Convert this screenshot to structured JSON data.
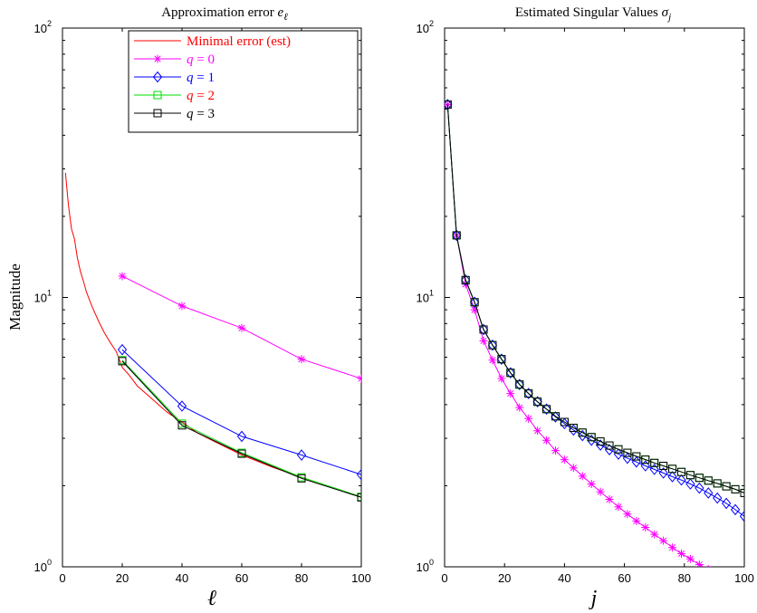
{
  "figure": {
    "ylabel": "Magnitude"
  },
  "chart_data": [
    {
      "type": "line",
      "title": "Approximation error e_ℓ",
      "title_main": "Approximation error ",
      "title_var": "e",
      "title_sub": "ℓ",
      "xlabel": "ℓ",
      "ylabel": "Magnitude",
      "xlim": [
        0,
        100
      ],
      "ylim": [
        1,
        100
      ],
      "yscale": "log",
      "grid": false,
      "legend_position": "top-right",
      "xticks": [
        "0",
        "20",
        "40",
        "60",
        "80",
        "100"
      ],
      "xtick_values": [
        0,
        20,
        40,
        60,
        80,
        100
      ],
      "yticks": [
        {
          "base": "10",
          "exp": "0",
          "value": 1
        },
        {
          "base": "10",
          "exp": "1",
          "value": 10
        },
        {
          "base": "10",
          "exp": "2",
          "value": 100
        }
      ],
      "series": [
        {
          "name": "Minimal error (est)",
          "color": "#ff0000",
          "marker": "none",
          "x": [
            1,
            2,
            3,
            4,
            5,
            6,
            7,
            8,
            9,
            10,
            12,
            14,
            16,
            18,
            20,
            22,
            25,
            30,
            35,
            40,
            45,
            50,
            60,
            70,
            80,
            90,
            100
          ],
          "y": [
            29,
            22,
            18,
            16.5,
            14,
            12.5,
            11.5,
            10.5,
            9.8,
            9.2,
            8.2,
            7.4,
            6.8,
            6.3,
            5.5,
            5.2,
            4.7,
            4.2,
            3.75,
            3.45,
            3.15,
            2.95,
            2.6,
            2.35,
            2.15,
            1.97,
            1.82
          ]
        },
        {
          "name": "q = 0",
          "q_value": "0",
          "color": "#ff00ff",
          "marker": "star",
          "x": [
            20,
            40,
            60,
            80,
            100
          ],
          "y": [
            12,
            9.3,
            7.7,
            5.9,
            5.0
          ]
        },
        {
          "name": "q = 1",
          "q_value": "1",
          "color": "#0000ff",
          "marker": "diamond",
          "x": [
            20,
            40,
            60,
            80,
            100
          ],
          "y": [
            6.4,
            3.95,
            3.05,
            2.6,
            2.2
          ]
        },
        {
          "name": "q = 2",
          "q_value": "2",
          "color": "#00dd00",
          "marker": "square",
          "x": [
            20,
            40,
            60,
            80,
            100
          ],
          "y": [
            5.85,
            3.4,
            2.65,
            2.15,
            1.82
          ]
        },
        {
          "name": "q = 3",
          "q_value": "3",
          "color": "#000000",
          "marker": "square",
          "x": [
            20,
            40,
            60,
            80,
            100
          ],
          "y": [
            5.8,
            3.35,
            2.63,
            2.13,
            1.81
          ]
        }
      ]
    },
    {
      "type": "line",
      "title": "Estimated Singular Values σ_j",
      "title_main": "Estimated Singular Values ",
      "title_var": "σ",
      "title_sub": "j",
      "xlabel": "j",
      "xlim": [
        0,
        100
      ],
      "ylim": [
        1,
        100
      ],
      "yscale": "log",
      "grid": false,
      "xticks": [
        "0",
        "20",
        "40",
        "60",
        "80",
        "100"
      ],
      "xtick_values": [
        0,
        20,
        40,
        60,
        80,
        100
      ],
      "yticks": [
        {
          "base": "10",
          "exp": "0",
          "value": 1
        },
        {
          "base": "10",
          "exp": "1",
          "value": 10
        },
        {
          "base": "10",
          "exp": "2",
          "value": 100
        }
      ],
      "series": [
        {
          "name": "q = 0",
          "color": "#ff00ff",
          "marker": "star",
          "x": [
            1,
            4,
            7,
            10,
            13,
            16,
            19,
            22,
            25,
            28,
            31,
            34,
            37,
            40,
            43,
            46,
            49,
            52,
            55,
            58,
            61,
            64,
            67,
            70,
            73,
            76,
            79,
            82,
            85,
            88
          ],
          "y": [
            52,
            17,
            11.2,
            9.0,
            6.9,
            5.85,
            5.0,
            4.4,
            3.9,
            3.55,
            3.2,
            2.95,
            2.7,
            2.5,
            2.33,
            2.17,
            2.03,
            1.9,
            1.78,
            1.67,
            1.57,
            1.48,
            1.4,
            1.32,
            1.25,
            1.18,
            1.12,
            1.07,
            1.02,
            0.98
          ]
        },
        {
          "name": "q = 1",
          "color": "#0000ff",
          "marker": "diamond",
          "x": [
            1,
            4,
            7,
            10,
            13,
            16,
            19,
            22,
            25,
            28,
            31,
            34,
            37,
            40,
            43,
            46,
            49,
            52,
            55,
            58,
            61,
            64,
            67,
            70,
            73,
            76,
            79,
            82,
            85,
            88,
            91,
            94,
            97,
            100
          ],
          "y": [
            52,
            17,
            11.6,
            9.6,
            7.6,
            6.65,
            5.9,
            5.25,
            4.75,
            4.4,
            4.1,
            3.85,
            3.6,
            3.4,
            3.22,
            3.07,
            2.95,
            2.83,
            2.72,
            2.62,
            2.53,
            2.45,
            2.37,
            2.3,
            2.23,
            2.16,
            2.1,
            2.03,
            1.96,
            1.88,
            1.8,
            1.72,
            1.63,
            1.54
          ]
        },
        {
          "name": "q = 2",
          "color": "#00dd00",
          "marker": "square",
          "x": [
            1,
            4,
            7,
            10,
            13,
            16,
            19,
            22,
            25,
            28,
            31,
            34,
            37,
            40,
            43,
            46,
            49,
            52,
            55,
            58,
            61,
            64,
            67,
            70,
            73,
            76,
            79,
            82,
            85,
            88,
            91,
            94,
            97,
            100
          ],
          "y": [
            52,
            17,
            11.6,
            9.6,
            7.6,
            6.65,
            5.9,
            5.25,
            4.75,
            4.4,
            4.1,
            3.85,
            3.62,
            3.45,
            3.28,
            3.15,
            3.03,
            2.92,
            2.82,
            2.73,
            2.65,
            2.57,
            2.5,
            2.43,
            2.37,
            2.31,
            2.25,
            2.19,
            2.14,
            2.09,
            2.04,
            1.99,
            1.94,
            1.88
          ]
        },
        {
          "name": "q = 3",
          "color": "#000000",
          "marker": "square",
          "x": [
            1,
            4,
            7,
            10,
            13,
            16,
            19,
            22,
            25,
            28,
            31,
            34,
            37,
            40,
            43,
            46,
            49,
            52,
            55,
            58,
            61,
            64,
            67,
            70,
            73,
            76,
            79,
            82,
            85,
            88,
            91,
            94,
            97,
            100
          ],
          "y": [
            52,
            17,
            11.6,
            9.6,
            7.6,
            6.65,
            5.9,
            5.25,
            4.75,
            4.4,
            4.1,
            3.85,
            3.62,
            3.45,
            3.28,
            3.15,
            3.03,
            2.92,
            2.82,
            2.73,
            2.65,
            2.57,
            2.5,
            2.43,
            2.37,
            2.31,
            2.25,
            2.19,
            2.14,
            2.09,
            2.04,
            1.99,
            1.94,
            1.88
          ]
        }
      ]
    }
  ]
}
